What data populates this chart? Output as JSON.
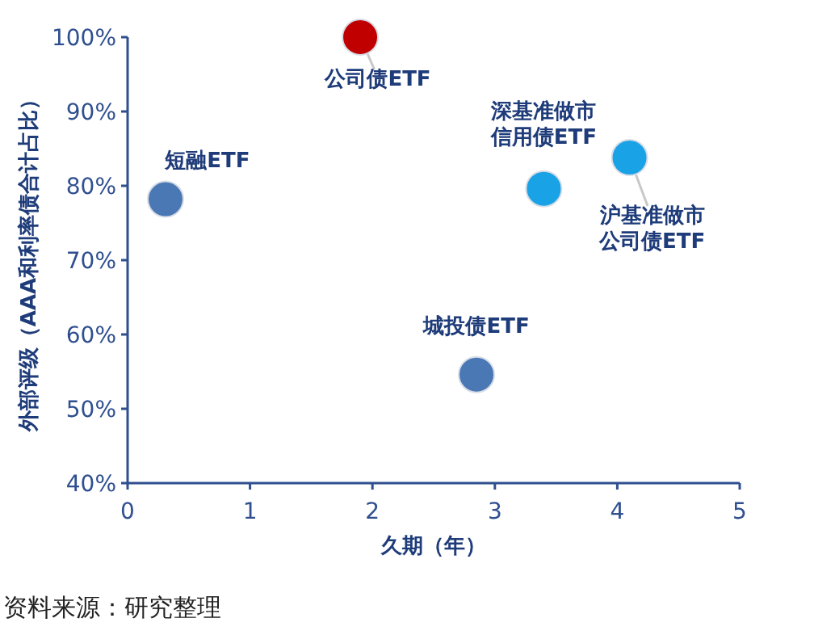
{
  "chart_data": {
    "type": "scatter",
    "xlabel": "久期（年）",
    "ylabel": "外部评级（AAA和利率债合计占比）",
    "x": [
      0.31,
      1.9,
      3.4,
      4.1,
      2.85
    ],
    "values": [
      78.2,
      100,
      79.6,
      83.8,
      54.6
    ],
    "colors": [
      "#4a78b5",
      "#c00000",
      "#19a2e6",
      "#19a2e6",
      "#4a78b5"
    ],
    "marker": "circle",
    "legend": false,
    "grid": false,
    "xlim": [
      0,
      5
    ],
    "xticks": [
      0,
      1,
      2,
      3,
      4,
      5
    ],
    "ylim": [
      40,
      100
    ],
    "yticks": [
      {
        "value": 40,
        "label": "40%"
      },
      {
        "value": 50,
        "label": "50%"
      },
      {
        "value": 60,
        "label": "60%"
      },
      {
        "value": 70,
        "label": "70%"
      },
      {
        "value": 80,
        "label": "80%"
      },
      {
        "value": 90,
        "label": "90%"
      },
      {
        "value": 100,
        "label": "100%"
      }
    ],
    "annotations": [
      {
        "text": "短融ETF",
        "x": 0.31,
        "y": 78.2
      },
      {
        "text": "公司债ETF",
        "x": 1.9,
        "y": 100
      },
      {
        "text": "深基准做市信用债ETF",
        "x": 3.4,
        "y": 79.6
      },
      {
        "text": "沪基准做市公司债ETF",
        "x": 4.1,
        "y": 83.8
      },
      {
        "text": "城投债ETF",
        "x": 2.85,
        "y": 54.6
      },
      "资料来源：研究整理"
    ]
  }
}
